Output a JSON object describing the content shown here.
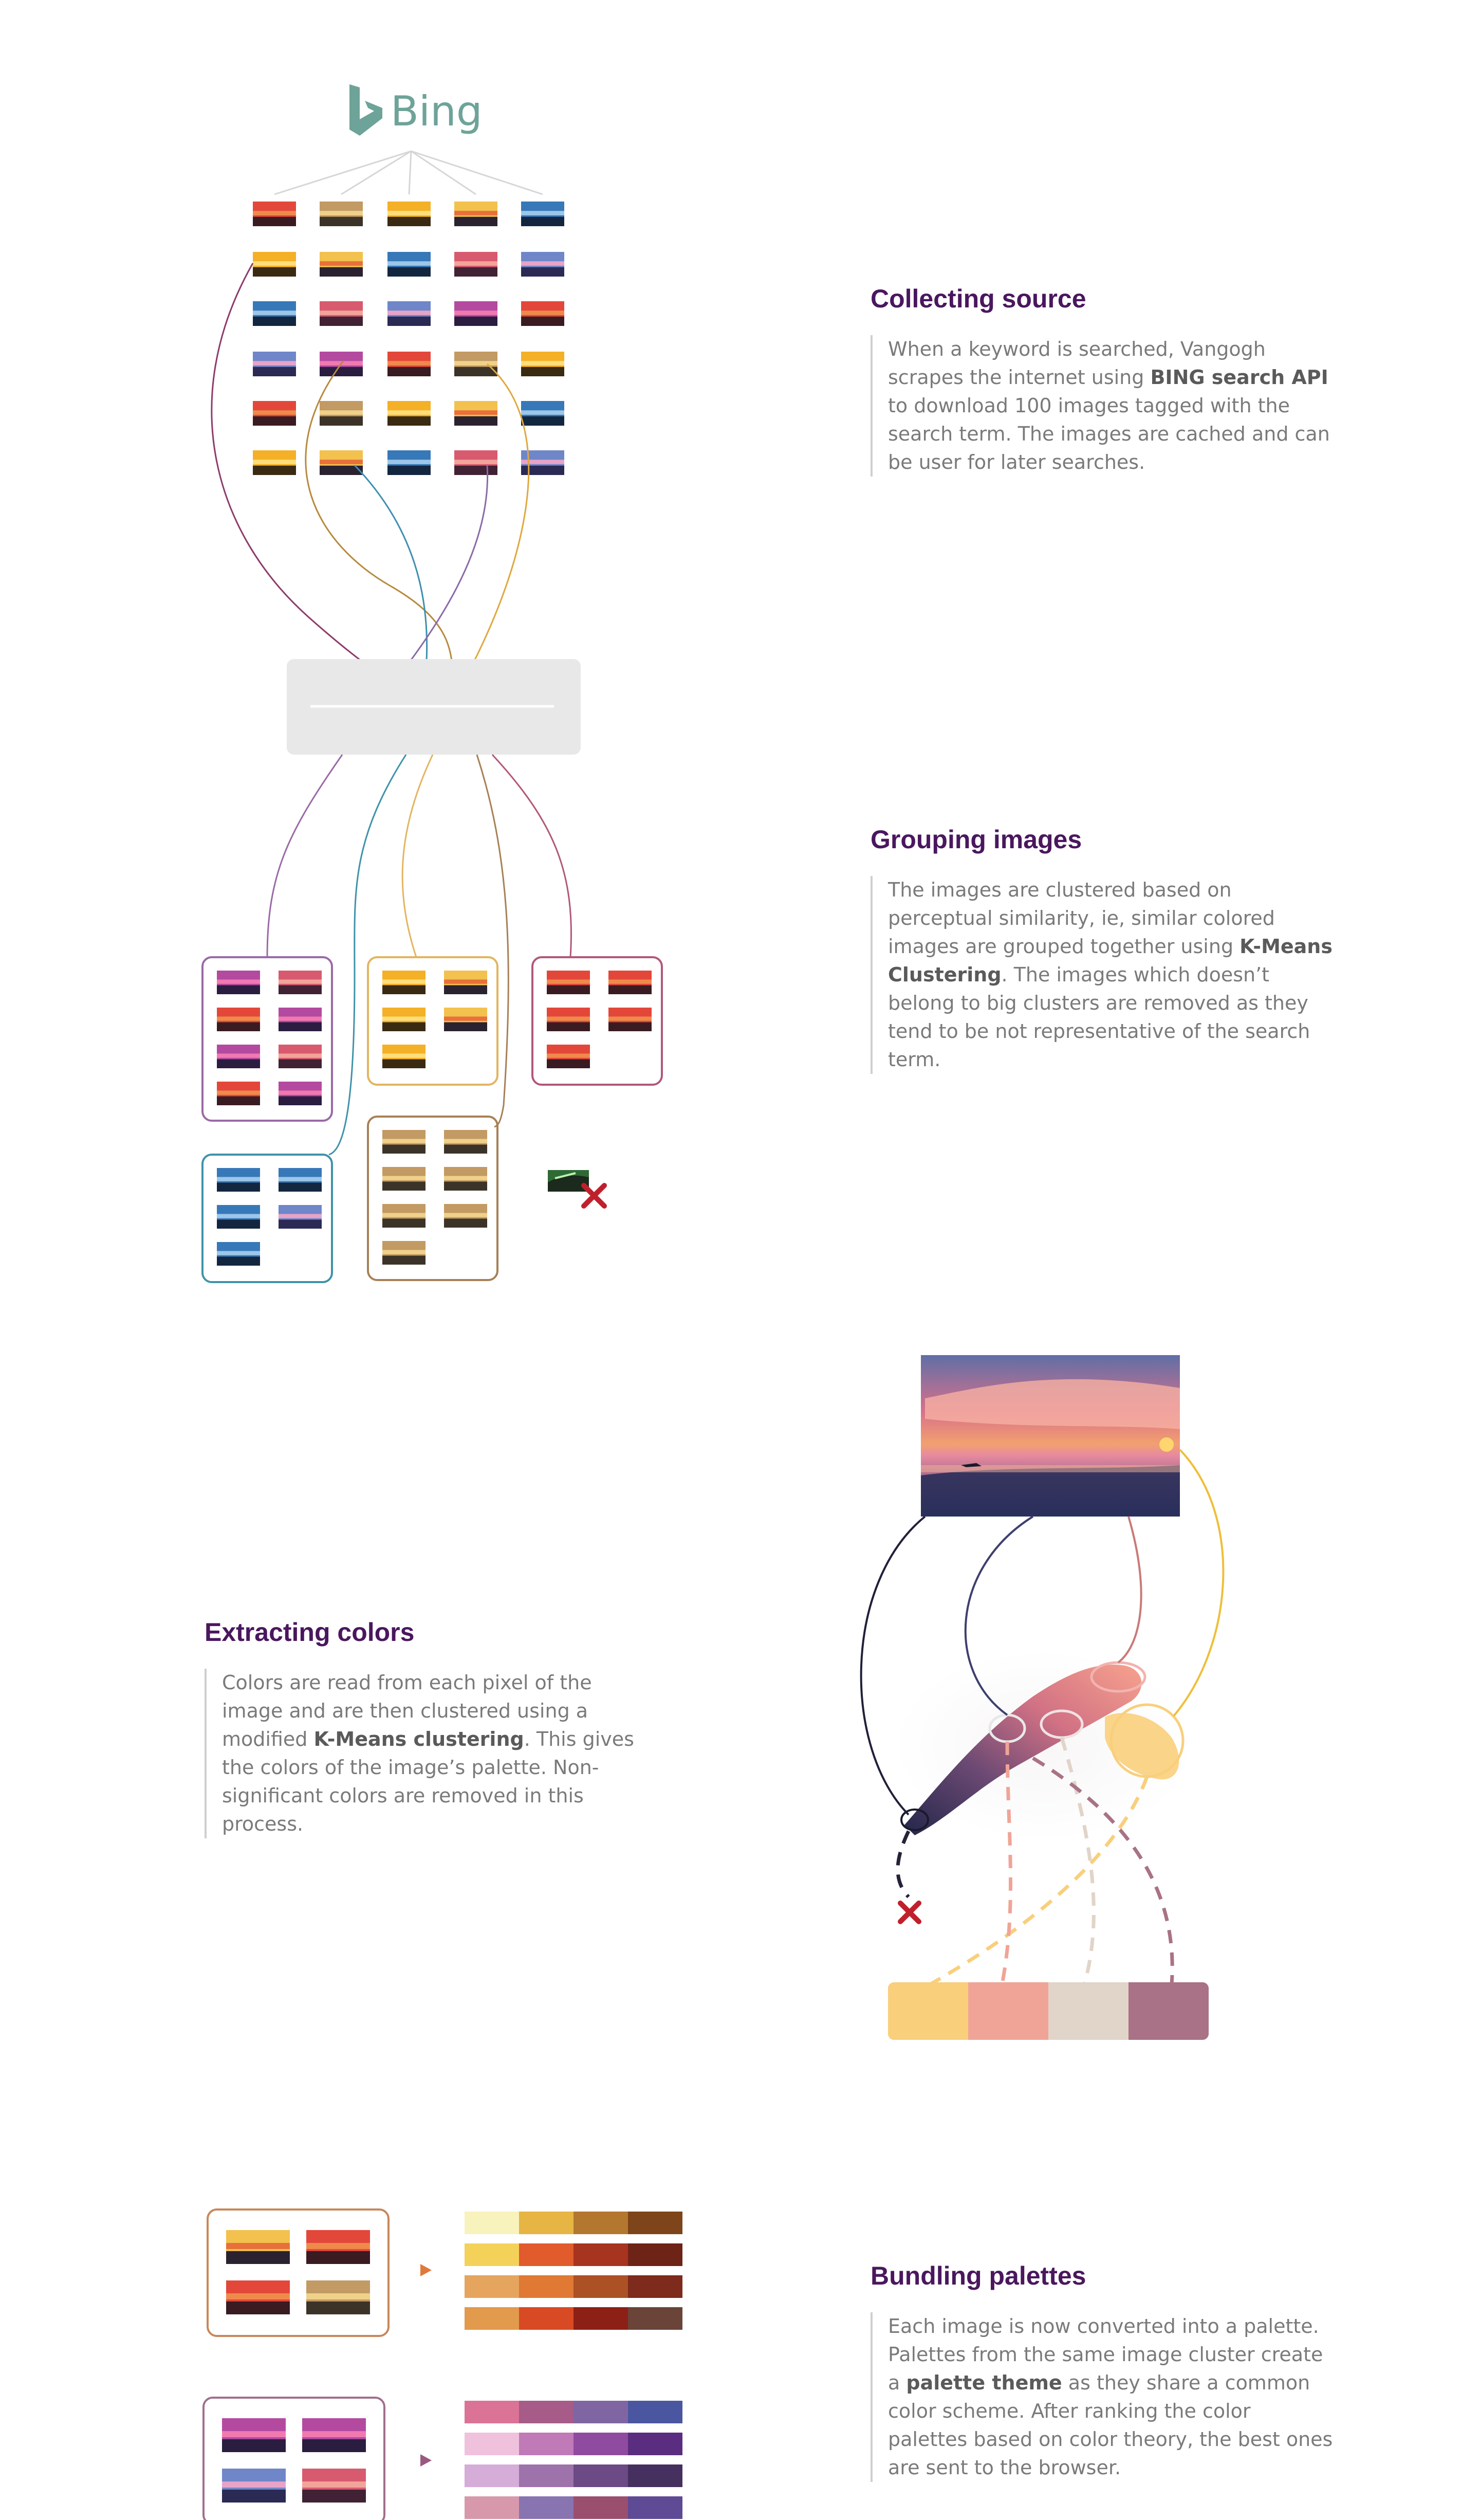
{
  "brand": {
    "logo_text": "Bing",
    "logo_color": "#6ea399"
  },
  "colors": {
    "heading": "#4a175e",
    "body": "#7a7a7a",
    "cluster_purple": "#9a6aa6",
    "cluster_yellow": "#e3b560",
    "cluster_red": "#b0587a",
    "cluster_blue": "#3f93a9",
    "cluster_brown": "#a78055",
    "reject": "#c0202c",
    "processor_box": "#e8e8e8"
  },
  "sections": [
    {
      "id": "collecting-source",
      "title": "Collecting source",
      "text": [
        {
          "t": "When a keyword is searched, Vangogh scrapes the internet using "
        },
        {
          "t": "BING search API",
          "b": true
        },
        {
          "t": " to download 100 images tagged with the search term. The images are cached and can be user for later searches."
        }
      ]
    },
    {
      "id": "grouping-images",
      "title": "Grouping images",
      "text": [
        {
          "t": "The images are clustered based on perceptual similarity, ie, similar colored images are grouped together using "
        },
        {
          "t": "K-Means Clustering",
          "b": true
        },
        {
          "t": ". The images which doesn’t belong to big clusters are removed as they tend to be not representative of the search term."
        }
      ]
    },
    {
      "id": "extracting-colors",
      "title": "Extracting colors",
      "text": [
        {
          "t": "Colors are read from each pixel of the image and are then clustered using a modified "
        },
        {
          "t": "K-Means clustering",
          "b": true
        },
        {
          "t": ". This gives the colors of the image’s palette. Non-significant colors are removed in this process."
        }
      ]
    },
    {
      "id": "bundling-palettes",
      "title": "Bundling palettes",
      "text": [
        {
          "t": "Each image is now converted into a palette. Palettes from the same image cluster create a "
        },
        {
          "t": "palette theme",
          "b": true
        },
        {
          "t": " as they share a common color scheme. After ranking the color palettes based on color theory, the best ones are sent to the browser."
        }
      ]
    }
  ],
  "extracted_palette": [
    "#f9cf7c",
    "#f0a497",
    "#e1d4c8",
    "#a97286"
  ],
  "palette_themes": [
    {
      "arrow_color": "#e07a3a",
      "frame_color": "#c8875a",
      "rows": [
        [
          "#f8f2bd",
          "#e6b543",
          "#b3772f",
          "#7d4519"
        ],
        [
          "#f4d25a",
          "#e15b2c",
          "#a7341f",
          "#6e2317"
        ],
        [
          "#e5a55e",
          "#df7933",
          "#ac5126",
          "#7e2a1c"
        ],
        [
          "#e29a4c",
          "#d84a24",
          "#8c2017",
          "#6a4438"
        ]
      ]
    },
    {
      "arrow_color": "#9a5a80",
      "frame_color": "#a1708d",
      "rows": [
        [
          "#da7396",
          "#a65b88",
          "#7f66a2",
          "#4b56a1"
        ],
        [
          "#efc1dd",
          "#c07ab8",
          "#8f4ba0",
          "#5b2d80"
        ],
        [
          "#d6acd8",
          "#9e72aa",
          "#6c4a85",
          "#46305f"
        ],
        [
          "#d898ac",
          "#8874b1",
          "#9a4f6e",
          "#5e4a95"
        ]
      ]
    }
  ]
}
